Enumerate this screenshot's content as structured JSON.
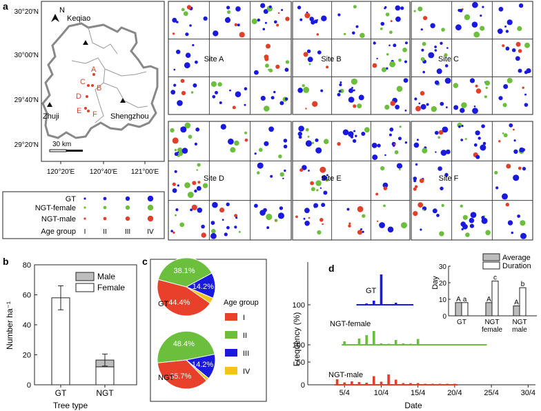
{
  "panel_labels": {
    "a": "a",
    "b": "b",
    "c": "c",
    "d": "d"
  },
  "map": {
    "north": "N",
    "lat_labels": [
      "30°20′N",
      "30°00′N",
      "29°40′N",
      "29°20′N"
    ],
    "lon_labels": [
      "120°20′E",
      "120°40′E",
      "121°00′E"
    ],
    "scale_label": "30 km",
    "places": [
      "Keqiao",
      "Zhuji",
      "Shengzhou"
    ],
    "sites": [
      "A",
      "B",
      "C",
      "D",
      "E",
      "F"
    ],
    "legend": {
      "rows": [
        "GT",
        "NGT-female",
        "NGT-male"
      ],
      "age_row_label": "Age group",
      "age_groups": [
        "I",
        "II",
        "III",
        "IV"
      ],
      "colors": {
        "GT": "#1a1adf",
        "NGT-female": "#6cbf3c",
        "NGT-male": "#e0402a"
      }
    }
  },
  "site_grids": [
    "Site A",
    "Site B",
    "Site C",
    "Site D",
    "Site E",
    "Site F"
  ],
  "chart_data": [
    {
      "type": "bar",
      "panel": "b",
      "ylabel": "Number ha⁻¹",
      "xlabel": "Tree type",
      "categories": [
        "GT",
        "NGT"
      ],
      "ylim": [
        0,
        80
      ],
      "yticks": [
        0,
        20,
        40,
        60,
        80
      ],
      "legend": [
        "Male",
        "Female"
      ],
      "series": [
        {
          "name": "Female",
          "values": [
            58,
            12
          ]
        },
        {
          "name": "Male",
          "values": [
            0,
            4.5
          ]
        }
      ],
      "errors": [
        8,
        4
      ]
    },
    {
      "type": "pie",
      "panel": "c",
      "legend_title": "Age group",
      "legend": [
        "I",
        "II",
        "III",
        "IV"
      ],
      "colors": [
        "#e8402a",
        "#6cbf3c",
        "#1a1adf",
        "#f2c318"
      ],
      "pies": [
        {
          "name": "GT",
          "values": [
            44.4,
            38.1,
            14.2,
            3.3
          ],
          "labels": [
            "44.4%",
            "38.1%",
            "14.2%",
            ""
          ]
        },
        {
          "name": "NGT",
          "values": [
            35.7,
            48.4,
            14.2,
            1.7
          ],
          "labels": [
            "35.7%",
            "48.4%",
            "14.2%",
            ""
          ]
        }
      ]
    },
    {
      "type": "bar",
      "panel": "d",
      "ylabel": "Frequency (%)",
      "xlabel": "Date",
      "x_ticks": [
        "5/4",
        "10/4",
        "15/4",
        "20/4",
        "25/4",
        "30/4"
      ],
      "y_ticks": [
        "0",
        "50",
        "100"
      ],
      "series": [
        {
          "name": "GT",
          "color": "#1a1adf",
          "days": [
            7,
            8,
            9,
            10,
            11,
            12,
            13,
            14
          ],
          "values": [
            2,
            4,
            12,
            88,
            2,
            6,
            2,
            2
          ]
        },
        {
          "name": "NGT-female",
          "color": "#6cbf3c",
          "days": [
            5,
            7,
            8,
            9,
            10,
            11,
            12,
            13,
            14,
            15,
            16,
            17,
            18,
            19,
            20,
            21,
            22,
            23,
            24
          ],
          "values": [
            10,
            18,
            28,
            40,
            4,
            3,
            14,
            4,
            3,
            17,
            2,
            2,
            2,
            2,
            2,
            2,
            2,
            2,
            2
          ]
        },
        {
          "name": "NGT-male",
          "color": "#e0402a",
          "days": [
            4,
            5,
            6,
            7,
            8,
            9,
            10,
            11,
            12,
            13,
            14,
            15,
            16,
            17,
            18,
            19,
            20
          ],
          "values": [
            16,
            7,
            10,
            8,
            6,
            25,
            9,
            30,
            15,
            5,
            5,
            5,
            3,
            3,
            3,
            3,
            3
          ]
        }
      ]
    },
    {
      "type": "bar",
      "panel": "d-inset",
      "ylabel": "Day",
      "categories": [
        "GT",
        "NGT female",
        "NGT male"
      ],
      "legend": [
        "Average",
        "Duration"
      ],
      "ylim": [
        0,
        30
      ],
      "yticks": [
        0,
        10,
        20,
        30
      ],
      "series": [
        {
          "name": "Average",
          "values": [
            8,
            8,
            6
          ]
        },
        {
          "name": "Duration",
          "values": [
            8,
            21,
            17
          ]
        }
      ],
      "letters": [
        [
          "A",
          "a"
        ],
        [
          "A",
          "c"
        ],
        [
          "A",
          "b"
        ]
      ]
    }
  ]
}
